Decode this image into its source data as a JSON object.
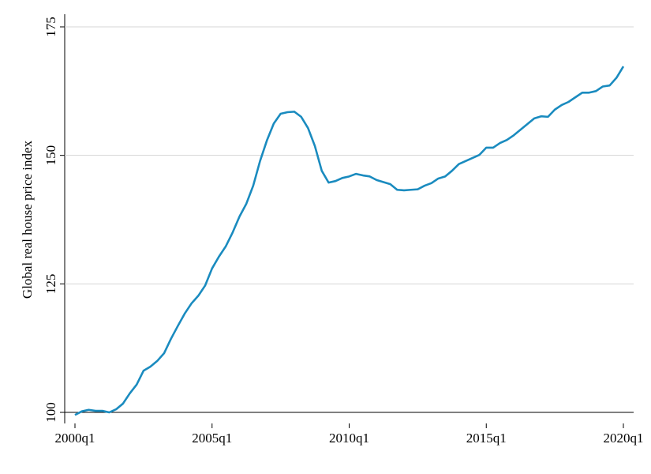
{
  "chart_data": {
    "type": "line",
    "y_label": "Global real house price index",
    "categories": [
      "2000q1",
      null,
      null,
      null,
      null,
      null,
      null,
      null,
      null,
      null,
      null,
      null,
      null,
      null,
      null,
      null,
      null,
      null,
      null,
      null,
      "2005q1",
      null,
      null,
      null,
      null,
      null,
      null,
      null,
      null,
      null,
      null,
      null,
      null,
      null,
      null,
      null,
      null,
      null,
      null,
      null,
      "2010q1",
      null,
      null,
      null,
      null,
      null,
      null,
      null,
      null,
      null,
      null,
      null,
      null,
      null,
      null,
      null,
      null,
      null,
      null,
      null,
      "2015q1",
      null,
      null,
      null,
      null,
      null,
      null,
      null,
      null,
      null,
      null,
      null,
      null,
      null,
      null,
      null,
      null,
      null,
      null,
      null,
      "2020q1"
    ],
    "values": [
      99.5,
      100.2,
      100.5,
      100.3,
      100.3,
      100.0,
      100.6,
      101.7,
      103.7,
      105.4,
      108.1,
      108.9,
      110.0,
      111.5,
      114.3,
      116.8,
      119.2,
      121.2,
      122.7,
      124.7,
      128.0,
      130.3,
      132.3,
      135.0,
      138.1,
      140.6,
      144.1,
      148.9,
      152.9,
      156.2,
      158.1,
      158.4,
      158.5,
      157.5,
      155.3,
      151.8,
      147.0,
      144.7,
      145.0,
      145.6,
      145.9,
      146.4,
      146.1,
      145.9,
      145.2,
      144.8,
      144.4,
      143.3,
      143.2,
      143.3,
      143.4,
      144.1,
      144.6,
      145.5,
      145.9,
      147.0,
      148.3,
      148.9,
      149.5,
      150.1,
      151.5,
      151.5,
      152.4,
      153.0,
      153.9,
      155.0,
      156.1,
      157.2,
      157.6,
      157.5,
      158.9,
      159.8,
      160.4,
      161.3,
      162.2,
      162.2,
      162.5,
      163.4,
      163.6,
      165.1,
      167.3
    ],
    "color": "#1a8bbf",
    "ylim": [
      100,
      175
    ],
    "yticks": [
      100,
      125,
      150,
      175
    ],
    "grid": true
  }
}
